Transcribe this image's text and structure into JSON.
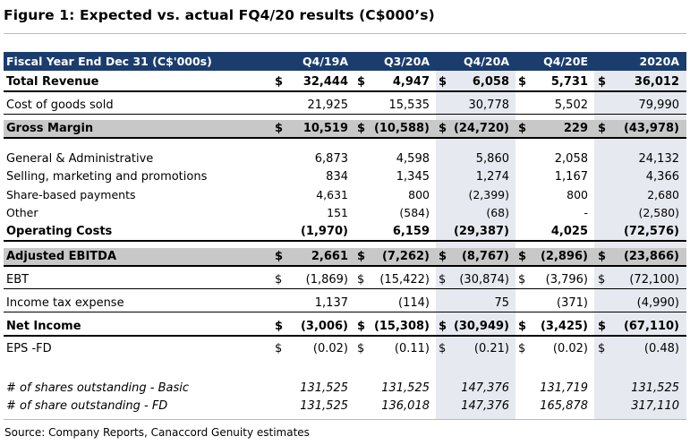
{
  "title": "Figure 1: Expected vs. actual FQ4/20 results (C$000’s)",
  "source": "Source: Company Reports, Canaccord Genuity estimates",
  "header": {
    "label": "Fiscal Year End Dec 31 (C$'000s)",
    "columns": [
      "Q4/19A",
      "Q3/20A",
      "Q4/20A",
      "Q4/20E",
      "2020A"
    ]
  },
  "rows": [
    {
      "label": "Total Revenue",
      "dollars": [
        "$",
        "$",
        "$",
        "$",
        "$"
      ],
      "values": [
        "32,444",
        "4,947",
        "6,058",
        "5,731",
        "36,012"
      ]
    },
    {
      "label": "Cost of goods sold",
      "dollars": [
        "",
        "",
        "",
        "",
        ""
      ],
      "values": [
        "21,925",
        "15,535",
        "30,778",
        "5,502",
        "79,990"
      ]
    },
    {
      "label": "Gross Margin",
      "dollars": [
        "$",
        "$",
        "$",
        "$",
        "$"
      ],
      "values": [
        "10,519",
        "(10,588)",
        "(24,720)",
        "229",
        "(43,978)"
      ]
    },
    {
      "label": "General & Administrative",
      "dollars": [
        "",
        "",
        "",
        "",
        ""
      ],
      "values": [
        "6,873",
        "4,598",
        "5,860",
        "2,058",
        "24,132"
      ]
    },
    {
      "label": "Selling, marketing and promotions",
      "dollars": [
        "",
        "",
        "",
        "",
        ""
      ],
      "values": [
        "834",
        "1,345",
        "1,274",
        "1,167",
        "4,366"
      ]
    },
    {
      "label": "Share-based payments",
      "dollars": [
        "",
        "",
        "",
        "",
        ""
      ],
      "values": [
        "4,631",
        "800",
        "(2,399)",
        "800",
        "2,680"
      ]
    },
    {
      "label": "Other",
      "dollars": [
        "",
        "",
        "",
        "",
        ""
      ],
      "values": [
        "151",
        "(584)",
        "(68)",
        "-",
        "(2,580)"
      ]
    },
    {
      "label": "Operating Costs",
      "dollars": [
        "",
        "",
        "",
        "",
        ""
      ],
      "values": [
        "(1,970)",
        "6,159",
        "(29,387)",
        "4,025",
        "(72,576)"
      ]
    },
    {
      "label": "Adjusted EBITDA",
      "dollars": [
        "$",
        "$",
        "$",
        "$",
        "$"
      ],
      "values": [
        "2,661",
        "(7,262)",
        "(8,767)",
        "(2,896)",
        "(23,866)"
      ]
    },
    {
      "label": "EBT",
      "dollars": [
        "$",
        "$",
        "$",
        "$",
        "$"
      ],
      "values": [
        "(1,869)",
        "(15,422)",
        "(30,874)",
        "(3,796)",
        "(72,100)"
      ]
    },
    {
      "label": "Income tax expense",
      "dollars": [
        "",
        "",
        "",
        "",
        ""
      ],
      "values": [
        "1,137",
        "(114)",
        "75",
        "(371)",
        "(4,990)"
      ]
    },
    {
      "label": "Net Income",
      "dollars": [
        "$",
        "$",
        "$",
        "$",
        "$"
      ],
      "values": [
        "(3,006)",
        "(15,308)",
        "(30,949)",
        "(3,425)",
        "(67,110)"
      ]
    },
    {
      "label": "EPS -FD",
      "dollars": [
        "$",
        "$",
        "$",
        "$",
        "$"
      ],
      "values": [
        "(0.02)",
        "(0.11)",
        "(0.21)",
        "(0.02)",
        "(0.48)"
      ]
    },
    {
      "label": "# of shares outstanding - Basic",
      "dollars": [
        "",
        "",
        "",
        "",
        ""
      ],
      "values": [
        "131,525",
        "131,525",
        "147,376",
        "131,719",
        "131,525"
      ]
    },
    {
      "label": "# of share outstanding - FD",
      "dollars": [
        "",
        "",
        "",
        "",
        ""
      ],
      "values": [
        "131,525",
        "136,018",
        "147,376",
        "165,878",
        "317,110"
      ]
    }
  ]
}
